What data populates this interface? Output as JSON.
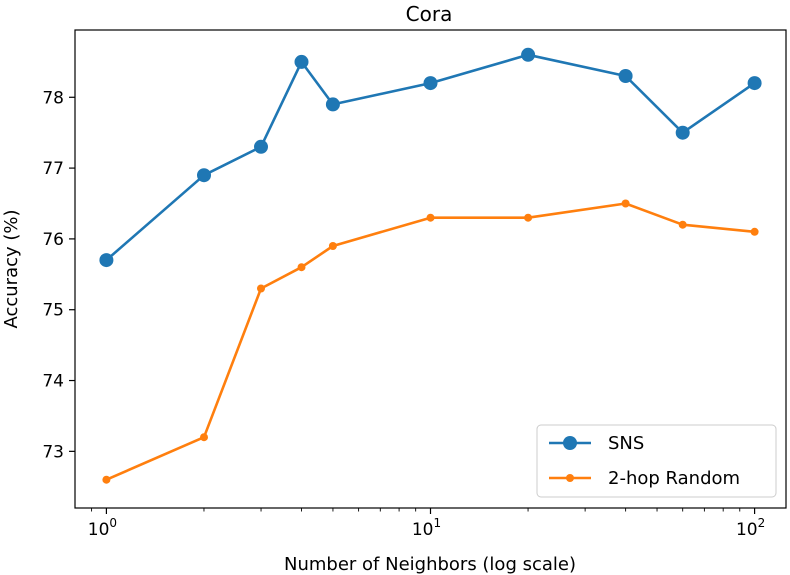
{
  "chart_data": {
    "type": "line",
    "title": "Cora",
    "xlabel": "Number of Neighbors (log scale)",
    "ylabel": "Accuracy (%)",
    "xscale": "log",
    "xlim": [
      0.8,
      125
    ],
    "ylim": [
      72.2,
      78.95
    ],
    "x_ticks": [
      1,
      10,
      100
    ],
    "x_tick_base": "10",
    "x_tick_exps": [
      "0",
      "1",
      "2"
    ],
    "y_ticks": [
      73,
      74,
      75,
      76,
      77,
      78
    ],
    "y_tick_labels": [
      "73",
      "74",
      "75",
      "76",
      "77",
      "78"
    ],
    "legend_position": "lower-right",
    "series": [
      {
        "name": "SNS",
        "color": "#1f77b4",
        "marker": "large",
        "x": [
          1,
          2,
          3,
          4,
          5,
          10,
          20,
          40,
          60,
          100
        ],
        "values": [
          75.7,
          76.9,
          77.3,
          78.5,
          77.9,
          78.2,
          78.6,
          78.3,
          77.5,
          78.2
        ]
      },
      {
        "name": "2-hop Random",
        "color": "#ff7f0e",
        "marker": "small",
        "x": [
          1,
          2,
          3,
          4,
          5,
          10,
          20,
          40,
          60,
          100
        ],
        "values": [
          72.6,
          73.2,
          75.3,
          75.6,
          75.9,
          76.3,
          76.3,
          76.5,
          76.2,
          76.1
        ]
      }
    ]
  }
}
